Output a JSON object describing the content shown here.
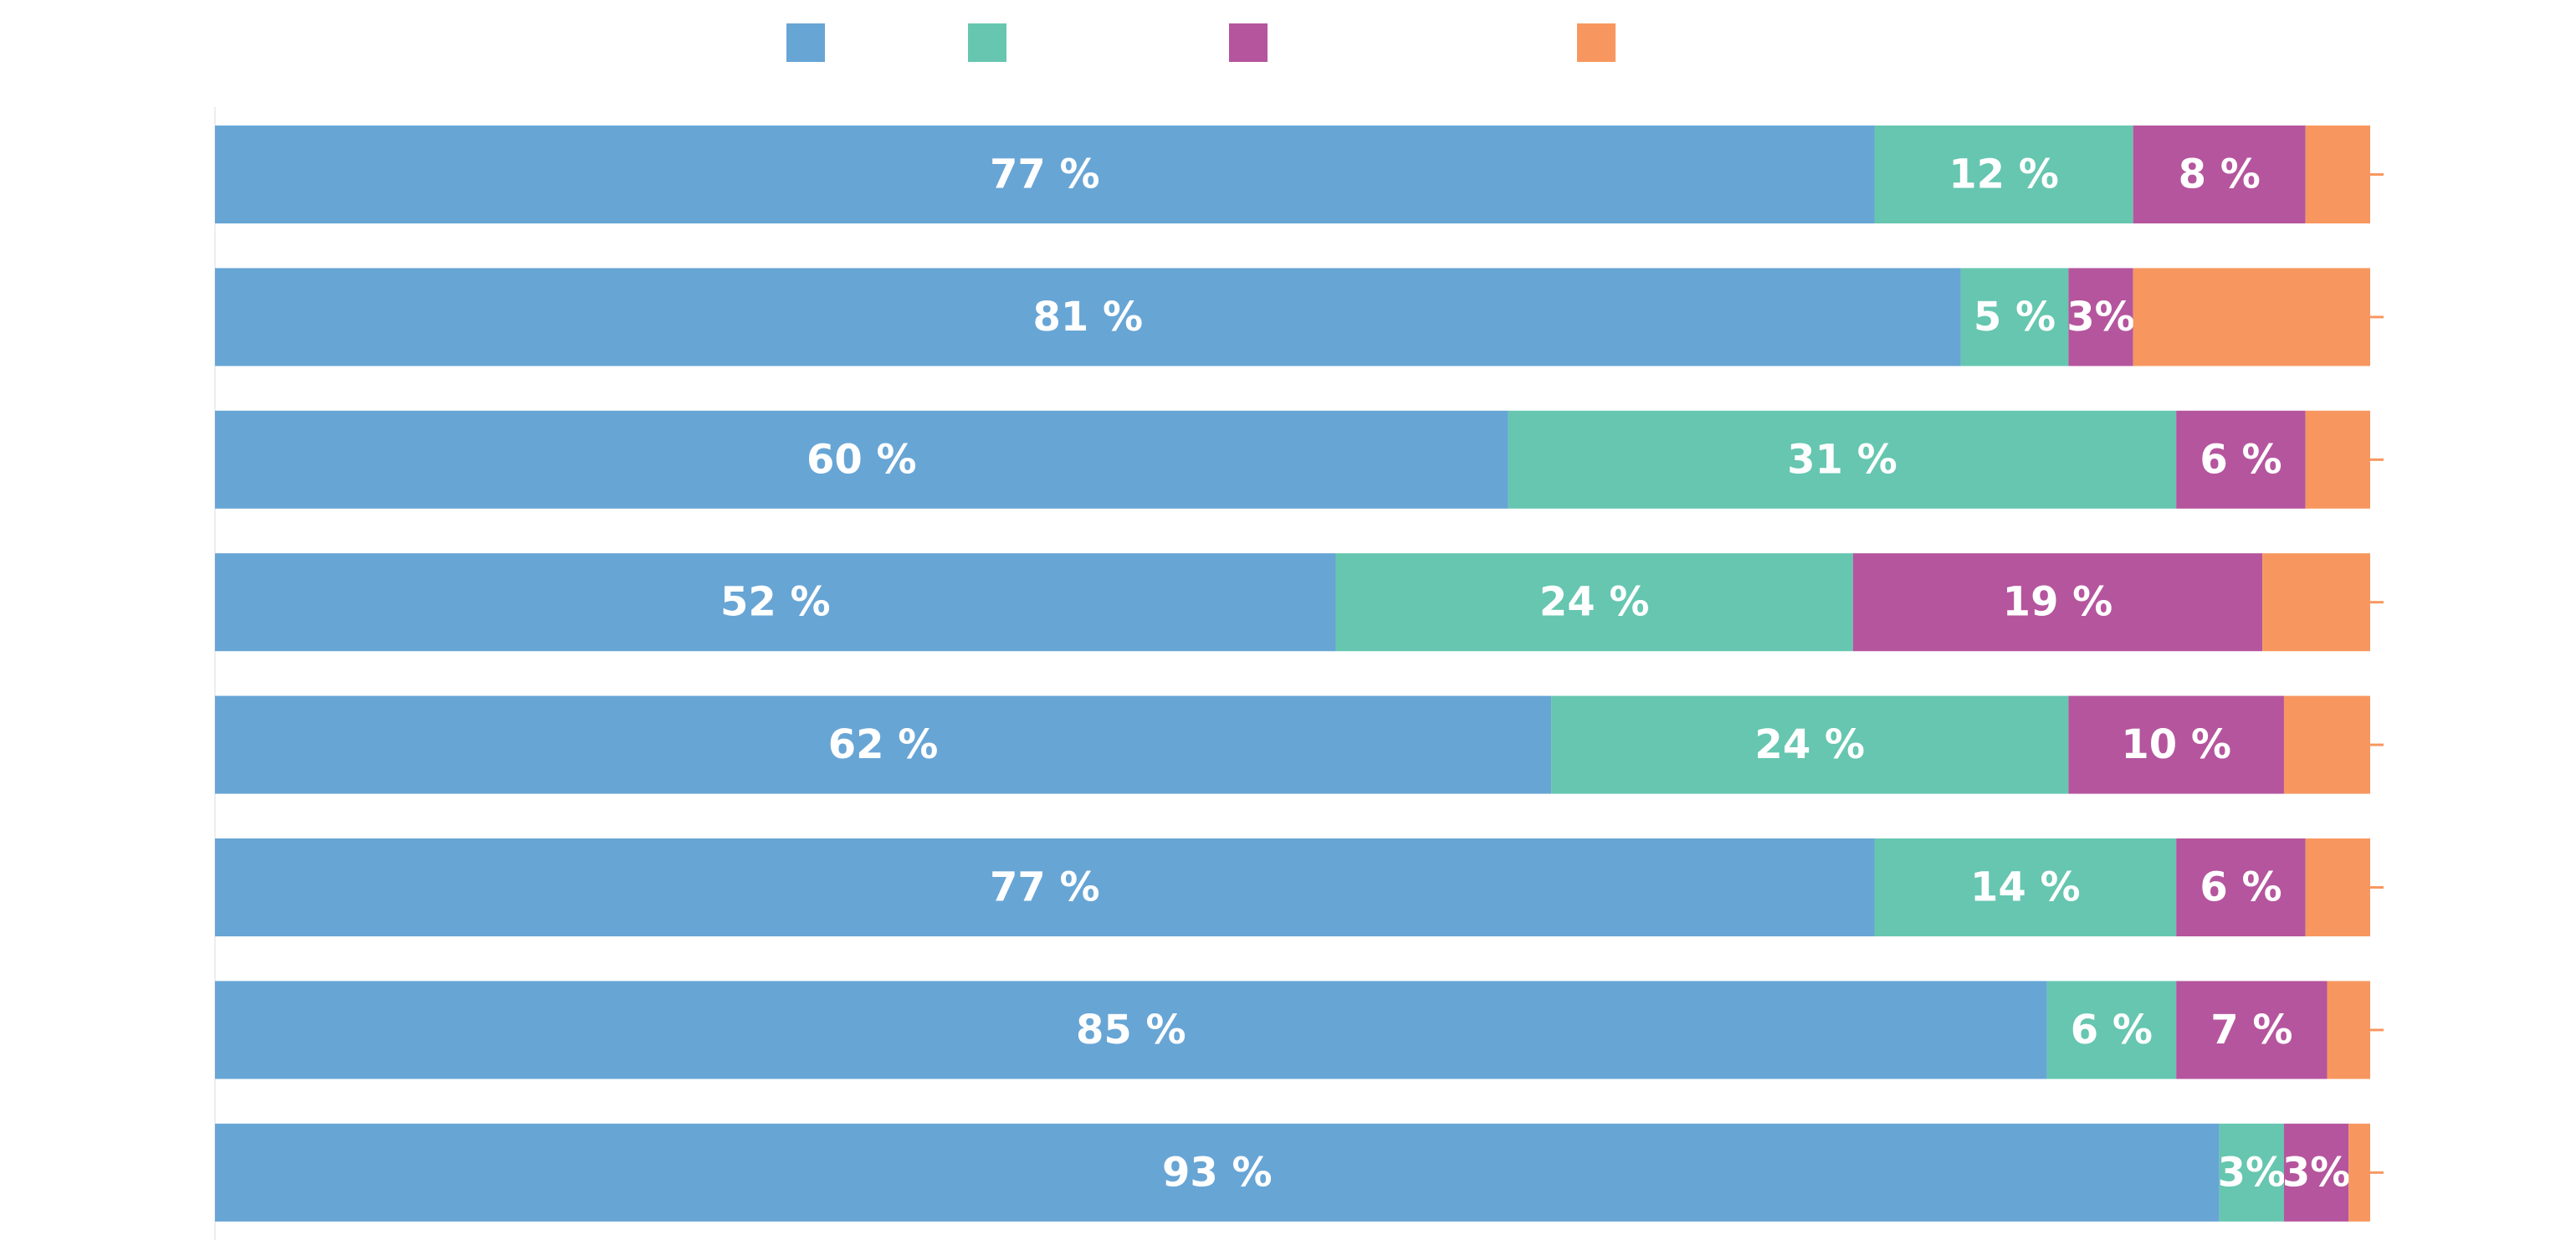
{
  "chart_data": {
    "type": "stacked-barh",
    "categories": [
      null,
      null,
      null,
      null,
      null,
      null,
      null,
      null
    ],
    "xlim": [
      0,
      100
    ],
    "series": [
      {
        "color": "#67a5d5",
        "values": [
          77,
          81,
          60,
          52,
          62,
          77,
          85,
          93
        ],
        "value_labels": [
          "77 %",
          "81 %",
          "60 %",
          "52 %",
          "62 %",
          "77 %",
          "85 %",
          "93 %"
        ]
      },
      {
        "color": "#66c6b0",
        "values": [
          12,
          5,
          31,
          24,
          24,
          14,
          6,
          3
        ],
        "value_labels": [
          "12 %",
          "5 %",
          "31 %",
          "24 %",
          "24 %",
          "14 %",
          "6 %",
          "3%"
        ]
      },
      {
        "color": "#b5559e",
        "values": [
          8,
          3,
          6,
          19,
          10,
          6,
          7,
          3
        ],
        "value_labels": [
          "8 %",
          "3%",
          "6 %",
          "19 %",
          "10 %",
          "6 %",
          "7 %",
          "3%"
        ]
      },
      {
        "color": "#f7975f",
        "values": [
          3,
          11,
          3,
          5,
          4,
          3,
          2,
          1
        ]
      }
    ]
  }
}
